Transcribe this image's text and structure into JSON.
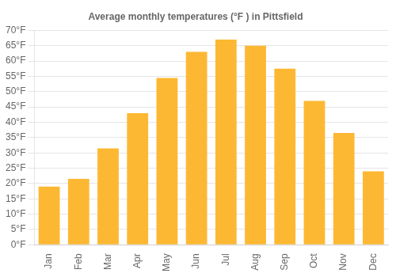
{
  "chart_data": {
    "type": "bar",
    "title": "Average monthly temperatures (°F ) in Pittsfield",
    "categories": [
      "Jan",
      "Feb",
      "Mar",
      "Apr",
      "May",
      "Jun",
      "Jul",
      "Aug",
      "Sep",
      "Oct",
      "Nov",
      "Dec"
    ],
    "values": [
      19,
      21.5,
      31.5,
      43,
      54.5,
      63,
      67,
      65,
      57.5,
      47,
      36.5,
      24
    ],
    "color": "#FDB833",
    "ylim": [
      0,
      70
    ],
    "yticks": [
      {
        "value": 0,
        "label": "0°F"
      },
      {
        "value": 5,
        "label": "5°F"
      },
      {
        "value": 10,
        "label": "10°F"
      },
      {
        "value": 15,
        "label": "15°F"
      },
      {
        "value": 20,
        "label": "20°F"
      },
      {
        "value": 25,
        "label": "25°F"
      },
      {
        "value": 30,
        "label": "30°F"
      },
      {
        "value": 35,
        "label": "35°F"
      },
      {
        "value": 40,
        "label": "40°F"
      },
      {
        "value": 45,
        "label": "45°F"
      },
      {
        "value": 50,
        "label": "50°F"
      },
      {
        "value": 55,
        "label": "55°F"
      },
      {
        "value": 60,
        "label": "60°F"
      },
      {
        "value": 65,
        "label": "65°F"
      },
      {
        "value": 70,
        "label": "70°F"
      }
    ],
    "grid": true
  }
}
